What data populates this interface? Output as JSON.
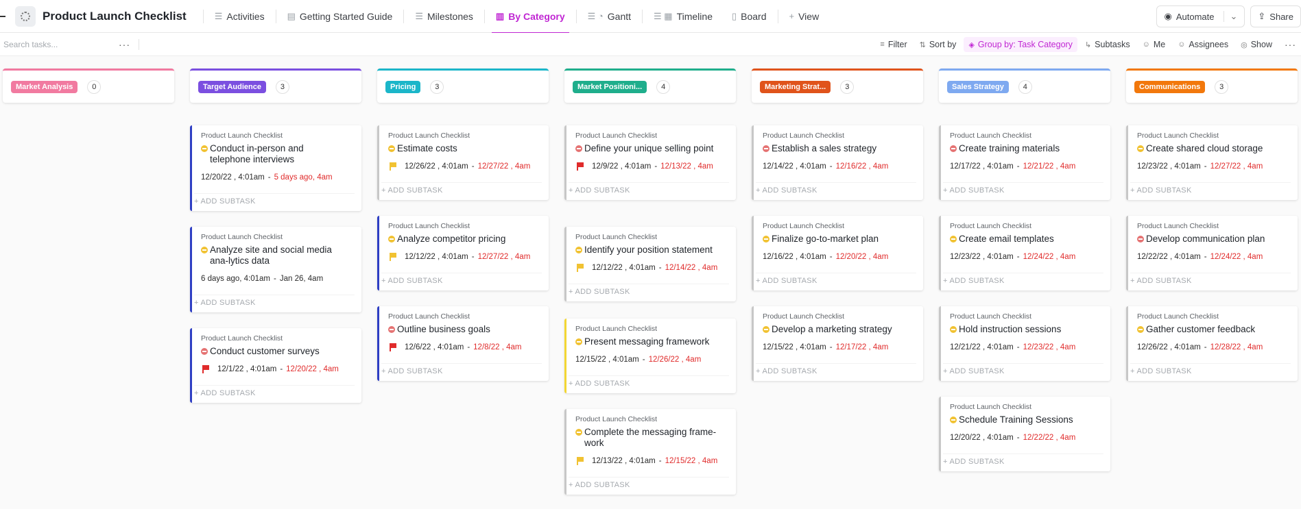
{
  "header": {
    "title": "Product Launch Checklist",
    "tabs": [
      {
        "label": "Activities",
        "icon": "list-icon"
      },
      {
        "label": "Getting Started Guide",
        "icon": "doc-icon"
      },
      {
        "label": "Milestones",
        "icon": "list-icon"
      },
      {
        "label": "By Category",
        "icon": "board-icon"
      },
      {
        "label": "Gantt",
        "icon": "gantt-icon"
      },
      {
        "label": "Timeline",
        "icon": "timeline-icon"
      },
      {
        "label": "Board",
        "icon": "board-icon"
      }
    ],
    "add_view": "View",
    "automate": "Automate",
    "share": "Share"
  },
  "toolbar": {
    "search_placeholder": "Search tasks...",
    "filter": "Filter",
    "sort": "Sort by",
    "group": "Group by: Task Category",
    "subtasks": "Subtasks",
    "me": "Me",
    "assignees": "Assignees",
    "show": "Show"
  },
  "add_subtask": "+ ADD SUBTASK",
  "columns": [
    {
      "name": "Market Analysis",
      "count": "0",
      "color": "#f17aa0",
      "cards": []
    },
    {
      "name": "Target Audience",
      "count": "3",
      "color": "#7b4fe0",
      "cards": [
        {
          "list": "Product Launch Checklist",
          "title": "Conduct in-person and telephone interviews",
          "status": "yellow",
          "flag": "",
          "start": "12/20/22 , 4:01am",
          "sep": "-",
          "due": "5 days ago, 4am",
          "due_red": true
        },
        {
          "list": "Product Launch Checklist",
          "title": "Analyze site and social media ana-lytics data",
          "status": "yellow",
          "flag": "",
          "start": "6 days ago, 4:01am",
          "sep": "-",
          "due": "Jan 26, 4am",
          "due_red": false
        },
        {
          "list": "Product Launch Checklist",
          "title": "Conduct customer surveys",
          "status": "red",
          "flag": "red",
          "start": "12/1/22 , 4:01am",
          "sep": "-",
          "due": "12/20/22 , 4am",
          "due_red": true
        }
      ]
    },
    {
      "name": "Pricing",
      "count": "3",
      "color": "#1bb6c9",
      "cards": [
        {
          "list": "Product Launch Checklist",
          "title": "Estimate costs",
          "status": "yellow",
          "flag": "yellow",
          "start": "12/26/22 , 4:01am",
          "sep": "-",
          "due": "12/27/22 , 4am",
          "due_red": true
        },
        {
          "list": "Product Launch Checklist",
          "title": "Analyze competitor pricing",
          "status": "yellow",
          "flag": "yellow",
          "start": "12/12/22 , 4:01am",
          "sep": "-",
          "due": "12/27/22 , 4am",
          "due_red": true
        },
        {
          "list": "Product Launch Checklist",
          "title": "Outline business goals",
          "status": "red",
          "flag": "red",
          "start": "12/6/22 , 4:01am",
          "sep": "-",
          "due": "12/8/22 , 4am",
          "due_red": true
        }
      ]
    },
    {
      "name": "Market Positioni...",
      "count": "4",
      "color": "#1fae8c",
      "cards": [
        {
          "list": "Product Launch Checklist",
          "title": "Define your unique selling point",
          "status": "red",
          "flag": "red",
          "start": "12/9/22 , 4:01am",
          "sep": "-",
          "due": "12/13/22 , 4am",
          "due_red": true
        },
        {
          "list": "Product Launch Checklist",
          "title": "Identify your position statement",
          "status": "yellow",
          "flag": "yellow",
          "start": "12/12/22 , 4:01am",
          "sep": "-",
          "due": "12/14/22 , 4am",
          "due_red": true
        },
        {
          "list": "Product Launch Checklist",
          "title": "Present messaging framework",
          "status": "yellow",
          "flag": "",
          "start": "12/15/22 , 4:01am",
          "sep": "-",
          "due": "12/26/22 , 4am",
          "due_red": true
        },
        {
          "list": "Product Launch Checklist",
          "title": "Complete the messaging frame-work",
          "status": "yellow",
          "flag": "yellow",
          "start": "12/13/22 , 4:01am",
          "sep": "-",
          "due": "12/15/22 , 4am",
          "due_red": true
        }
      ]
    },
    {
      "name": "Marketing Strat...",
      "count": "3",
      "color": "#e0531b",
      "cards": [
        {
          "list": "Product Launch Checklist",
          "title": "Establish a sales strategy",
          "status": "red",
          "flag": "",
          "start": "12/14/22 , 4:01am",
          "sep": "-",
          "due": "12/16/22 , 4am",
          "due_red": true
        },
        {
          "list": "Product Launch Checklist",
          "title": "Finalize go-to-market plan",
          "status": "yellow",
          "flag": "",
          "start": "12/16/22 , 4:01am",
          "sep": "-",
          "due": "12/20/22 , 4am",
          "due_red": true
        },
        {
          "list": "Product Launch Checklist",
          "title": "Develop a marketing strategy",
          "status": "yellow",
          "flag": "",
          "start": "12/15/22 , 4:01am",
          "sep": "-",
          "due": "12/17/22 , 4am",
          "due_red": true
        }
      ]
    },
    {
      "name": "Sales Strategy",
      "count": "4",
      "color": "#7ea9f0",
      "cards": [
        {
          "list": "Product Launch Checklist",
          "title": "Create training materials",
          "status": "red",
          "flag": "",
          "start": "12/17/22 , 4:01am",
          "sep": "-",
          "due": "12/21/22 , 4am",
          "due_red": true
        },
        {
          "list": "Product Launch Checklist",
          "title": "Create email templates",
          "status": "yellow",
          "flag": "",
          "start": "12/23/22 , 4:01am",
          "sep": "-",
          "due": "12/24/22 , 4am",
          "due_red": true
        },
        {
          "list": "Product Launch Checklist",
          "title": "Hold instruction sessions",
          "status": "yellow",
          "flag": "",
          "start": "12/21/22 , 4:01am",
          "sep": "-",
          "due": "12/23/22 , 4am",
          "due_red": true
        },
        {
          "list": "Product Launch Checklist",
          "title": "Schedule Training Sessions",
          "status": "yellow",
          "flag": "",
          "start": "12/20/22 , 4:01am",
          "sep": "-",
          "due": "12/22/22 , 4am",
          "due_red": true
        }
      ]
    },
    {
      "name": "Communications",
      "count": "3",
      "color": "#f2780c",
      "cards": [
        {
          "list": "Product Launch Checklist",
          "title": "Create shared cloud storage",
          "status": "yellow",
          "flag": "",
          "start": "12/23/22 , 4:01am",
          "sep": "-",
          "due": "12/27/22 , 4am",
          "due_red": true
        },
        {
          "list": "Product Launch Checklist",
          "title": "Develop communication plan",
          "status": "red",
          "flag": "",
          "start": "12/22/22 , 4:01am",
          "sep": "-",
          "due": "12/24/22 , 4am",
          "due_red": true
        },
        {
          "list": "Product Launch Checklist",
          "title": "Gather customer feedback",
          "status": "yellow",
          "flag": "",
          "start": "12/26/22 , 4:01am",
          "sep": "-",
          "due": "12/28/22 , 4am",
          "due_red": true
        }
      ]
    }
  ]
}
